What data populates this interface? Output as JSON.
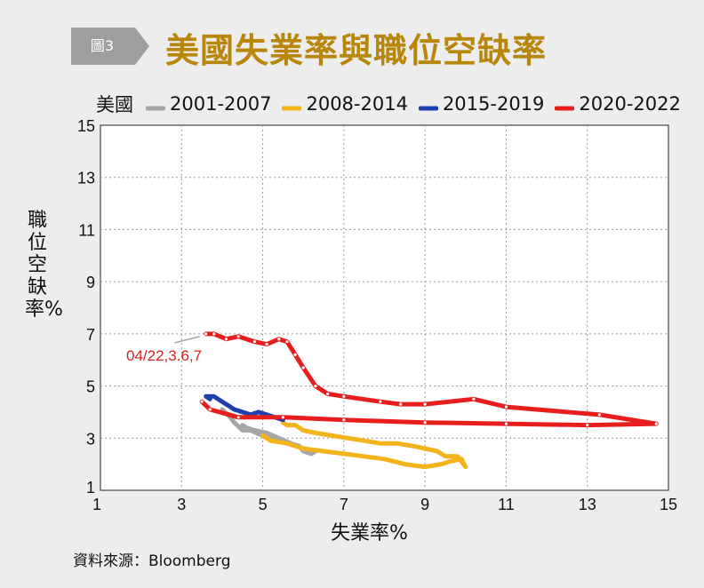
{
  "header": {
    "figure_label": "圖3",
    "title": "美國失業率與職位空缺率"
  },
  "legend": {
    "region": "美國"
  },
  "source": "資料來源：Bloomberg",
  "colors": {
    "title": "#b8860b",
    "badge": "#9e9e9e",
    "grid": "#9a9a9a"
  },
  "chart_data": {
    "type": "line",
    "title": "美國失業率與職位空缺率",
    "xlabel": "失業率%",
    "ylabel": "職位空缺率%",
    "xlim": [
      1,
      15
    ],
    "ylim": [
      1,
      15
    ],
    "xticks": [
      1,
      3,
      5,
      7,
      9,
      11,
      13,
      15
    ],
    "yticks": [
      1,
      3,
      5,
      7,
      9,
      11,
      13,
      15
    ],
    "grid": true,
    "legend_position": "top",
    "annotation": {
      "text": "04/22,3.6,7",
      "x": 3.6,
      "y": 7.0
    },
    "series": [
      {
        "name": "2001-2007",
        "color": "#a6a6a6",
        "markers": false,
        "points": [
          [
            4.0,
            4.1
          ],
          [
            4.2,
            3.8
          ],
          [
            4.3,
            3.6
          ],
          [
            4.5,
            3.3
          ],
          [
            4.7,
            3.3
          ],
          [
            5.0,
            3.1
          ],
          [
            5.3,
            3.0
          ],
          [
            5.6,
            2.8
          ],
          [
            5.9,
            2.7
          ],
          [
            6.0,
            2.5
          ],
          [
            6.2,
            2.4
          ],
          [
            6.3,
            2.5
          ],
          [
            6.0,
            2.6
          ],
          [
            5.7,
            2.8
          ],
          [
            5.4,
            3.0
          ],
          [
            5.1,
            3.2
          ],
          [
            4.8,
            3.3
          ],
          [
            4.6,
            3.4
          ],
          [
            4.5,
            3.5
          ],
          [
            4.6,
            3.3
          ],
          [
            4.7,
            3.3
          ]
        ]
      },
      {
        "name": "2008-2014",
        "color": "#f2b418",
        "markers": false,
        "points": [
          [
            5.0,
            3.1
          ],
          [
            5.2,
            2.9
          ],
          [
            5.6,
            2.8
          ],
          [
            6.0,
            2.6
          ],
          [
            6.5,
            2.5
          ],
          [
            7.0,
            2.4
          ],
          [
            7.5,
            2.3
          ],
          [
            8.0,
            2.2
          ],
          [
            8.5,
            2.0
          ],
          [
            9.0,
            1.9
          ],
          [
            9.4,
            2.0
          ],
          [
            9.6,
            2.1
          ],
          [
            9.9,
            2.2
          ],
          [
            10.0,
            1.9
          ],
          [
            9.8,
            2.3
          ],
          [
            9.5,
            2.3
          ],
          [
            9.3,
            2.5
          ],
          [
            9.0,
            2.6
          ],
          [
            8.7,
            2.7
          ],
          [
            8.3,
            2.8
          ],
          [
            7.9,
            2.8
          ],
          [
            7.5,
            2.9
          ],
          [
            7.1,
            3.0
          ],
          [
            6.7,
            3.1
          ],
          [
            6.3,
            3.2
          ],
          [
            6.0,
            3.3
          ],
          [
            5.8,
            3.5
          ],
          [
            5.6,
            3.5
          ],
          [
            5.5,
            3.6
          ]
        ]
      },
      {
        "name": "2015-2019",
        "color": "#1f3fae",
        "markers": false,
        "points": [
          [
            5.5,
            3.7
          ],
          [
            5.3,
            3.8
          ],
          [
            5.1,
            3.9
          ],
          [
            4.9,
            4.0
          ],
          [
            4.7,
            3.9
          ],
          [
            4.5,
            4.0
          ],
          [
            4.3,
            4.1
          ],
          [
            4.1,
            4.3
          ],
          [
            4.0,
            4.4
          ],
          [
            3.9,
            4.5
          ],
          [
            3.8,
            4.6
          ],
          [
            3.7,
            4.6
          ],
          [
            3.6,
            4.6
          ],
          [
            3.7,
            4.5
          ]
        ]
      },
      {
        "name": "2020-2022",
        "color": "#e81e1e",
        "markers": true,
        "points": [
          [
            3.5,
            4.4
          ],
          [
            3.7,
            4.1
          ],
          [
            4.4,
            3.8
          ],
          [
            5.5,
            3.8
          ],
          [
            7.0,
            3.7
          ],
          [
            9.0,
            3.6
          ],
          [
            11.0,
            3.55
          ],
          [
            13.0,
            3.5
          ],
          [
            14.7,
            3.55
          ],
          [
            13.3,
            3.9
          ],
          [
            11.0,
            4.2
          ],
          [
            10.2,
            4.5
          ],
          [
            9.0,
            4.3
          ],
          [
            8.4,
            4.3
          ],
          [
            7.9,
            4.4
          ],
          [
            7.0,
            4.6
          ],
          [
            6.6,
            4.7
          ],
          [
            6.3,
            5.0
          ],
          [
            6.0,
            5.7
          ],
          [
            5.8,
            6.2
          ],
          [
            5.6,
            6.7
          ],
          [
            5.4,
            6.8
          ],
          [
            5.1,
            6.6
          ],
          [
            4.8,
            6.7
          ],
          [
            4.4,
            6.9
          ],
          [
            4.1,
            6.8
          ],
          [
            3.8,
            7.0
          ],
          [
            3.6,
            7.0
          ]
        ]
      }
    ]
  }
}
